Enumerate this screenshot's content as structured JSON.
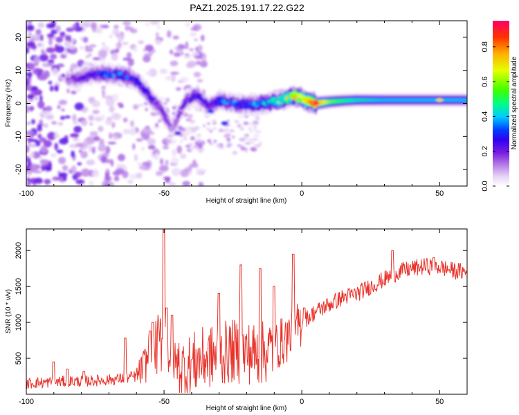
{
  "title": "PAZ1.2025.191.17.22.G22",
  "colors": {
    "snr_line": "#e8332b",
    "background": "#ffffff",
    "axis": "#000000",
    "colormap": [
      "#ffffff",
      "#e6d2f5",
      "#b47ae6",
      "#7a1fe0",
      "#3000f0",
      "#0040ff",
      "#00ccff",
      "#00ff80",
      "#40ff00",
      "#e6ff00",
      "#ffb000",
      "#ff3300",
      "#ff0066"
    ]
  },
  "chart_data": [
    {
      "type": "heatmap",
      "xlabel": "Height of straight line (km)",
      "ylabel": "Frequency (Hz)",
      "xlim": [
        -100,
        60
      ],
      "ylim": [
        -25,
        25
      ],
      "xticks": [
        -100,
        -50,
        0,
        50
      ],
      "yticks": [
        -20,
        -10,
        0,
        10,
        20
      ],
      "colorbar": {
        "label": "Normalized spectral amplitude",
        "range": [
          0,
          0.95
        ],
        "ticks": [
          "0.0",
          "0.2",
          "0.4",
          "0.6",
          "0.8"
        ],
        "tick_values": [
          0,
          0.2,
          0.4,
          0.6,
          0.8
        ]
      },
      "ridge": {
        "height_km": [
          -85,
          -80,
          -75,
          -70,
          -65,
          -60,
          -57,
          -54,
          -51,
          -49,
          -47,
          -45,
          -42,
          -38,
          -34,
          -30,
          -25,
          -20,
          -15,
          -10,
          -5,
          -3,
          0,
          3,
          5,
          8,
          10,
          15,
          20,
          30,
          40,
          50,
          60
        ],
        "frequency_hz": [
          7,
          8,
          9,
          9,
          8.5,
          7,
          4,
          1,
          -2,
          -5,
          -8,
          -4,
          1,
          2.5,
          -1,
          0.8,
          0,
          -0.5,
          0,
          0.5,
          1.5,
          2.5,
          1.5,
          0.5,
          0,
          0.3,
          0.5,
          0.8,
          1,
          1,
          1,
          1,
          1
        ],
        "amplitude": [
          0.15,
          0.2,
          0.25,
          0.3,
          0.3,
          0.25,
          0.25,
          0.22,
          0.2,
          0.15,
          0.1,
          0.15,
          0.2,
          0.25,
          0.2,
          0.3,
          0.3,
          0.3,
          0.35,
          0.45,
          0.6,
          0.7,
          0.65,
          0.75,
          0.9,
          0.7,
          0.6,
          0.5,
          0.45,
          0.4,
          0.4,
          0.4,
          0.4
        ]
      }
    },
    {
      "type": "line",
      "xlabel": "Height of straight line (km)",
      "ylabel": "SNR (10 * v/v)",
      "xlim": [
        -100,
        60
      ],
      "ylim": [
        0,
        2300
      ],
      "xticks": [
        -100,
        -50,
        0,
        50
      ],
      "yticks": [
        500,
        1000,
        1500,
        2000
      ],
      "series": [
        {
          "x": [
            -100,
            -95,
            -90,
            -85,
            -80,
            -75,
            -70,
            -65,
            -62,
            -60,
            -58,
            -55,
            -52,
            -50,
            -48,
            -45,
            -42,
            -40,
            -35,
            -30,
            -25,
            -20,
            -15,
            -10,
            -5,
            0,
            5,
            10,
            15,
            20,
            25,
            30,
            35,
            40,
            45,
            50,
            55,
            60
          ],
          "y": [
            150,
            160,
            170,
            180,
            180,
            190,
            200,
            220,
            240,
            250,
            350,
            550,
            700,
            800,
            550,
            400,
            350,
            420,
            500,
            550,
            600,
            580,
            560,
            650,
            800,
            1000,
            1150,
            1250,
            1350,
            1400,
            1500,
            1600,
            1700,
            1750,
            1780,
            1770,
            1720,
            1700
          ],
          "spikes": [
            {
              "x": -90,
              "y": 450
            },
            {
              "x": -85,
              "y": 350
            },
            {
              "x": -79,
              "y": 320
            },
            {
              "x": -64,
              "y": 780
            },
            {
              "x": -55,
              "y": 880
            },
            {
              "x": -54,
              "y": 1000
            },
            {
              "x": -50,
              "y": 2300
            },
            {
              "x": -49,
              "y": 1200
            },
            {
              "x": -47,
              "y": 1100
            },
            {
              "x": -30,
              "y": 1400
            },
            {
              "x": -22,
              "y": 1800
            },
            {
              "x": -15,
              "y": 1750
            },
            {
              "x": -10,
              "y": 1500
            },
            {
              "x": -3,
              "y": 1950
            },
            {
              "x": 1,
              "y": 1200
            },
            {
              "x": 33,
              "y": 2000
            },
            {
              "x": 48,
              "y": 1900
            }
          ]
        }
      ]
    }
  ]
}
